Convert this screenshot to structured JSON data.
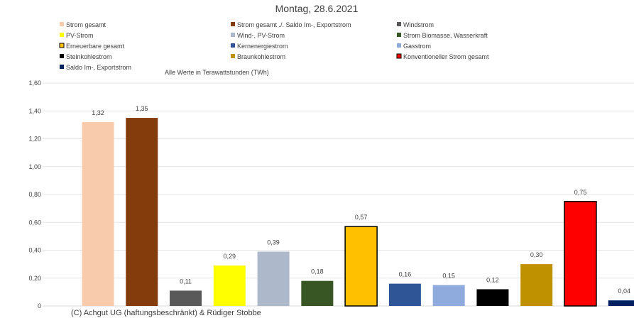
{
  "chart_data": {
    "type": "bar",
    "title": "Montag, 28.6.2021",
    "subtitle": "Alle Werte in Terawattstunden (TWh)",
    "footer": "(C) Achgut UG (haftungsbeschränkt) & Rüdiger Stobbe",
    "ylim": [
      0,
      1.6
    ],
    "yticks": [
      "0",
      "0,20",
      "0,40",
      "0,60",
      "0,80",
      "1,00",
      "1,20",
      "1,40",
      "1,60"
    ],
    "grid": true,
    "legend_position": "top",
    "categories": [
      "Strom gesamt",
      "Strom gesamt ./. Saldo Im-, Exportstrom",
      "Windstrom",
      "PV-Strom",
      "Wind-, PV-Strom",
      "Strom Biomasse, Wasserkraft",
      "Erneuerbare gesamt",
      "Kernenergiestrom",
      "Gasstrom",
      "Steinkohlestrom",
      "Braunkohlestrom",
      "Konventioneller Strom gesamt",
      "Saldo Im-, Exportstrom"
    ],
    "values": [
      1.32,
      1.35,
      0.11,
      0.29,
      0.39,
      0.18,
      0.57,
      0.16,
      0.15,
      0.12,
      0.3,
      0.75,
      0.04
    ],
    "data_labels": [
      "1,32",
      "1,35",
      "0,11",
      "0,29",
      "0,39",
      "0,18",
      "0,57",
      "0,16",
      "0,15",
      "0,12",
      "0,30",
      "0,75",
      "0,04"
    ],
    "colors": [
      "#f8cbad",
      "#843c0c",
      "#595959",
      "#ffff00",
      "#adb9ca",
      "#375623",
      "#ffc000",
      "#2f5597",
      "#8faadc",
      "#000000",
      "#bf9000",
      "#ff0000",
      "#002060"
    ],
    "outlined": [
      false,
      false,
      false,
      false,
      false,
      false,
      true,
      false,
      false,
      false,
      false,
      true,
      false
    ]
  }
}
